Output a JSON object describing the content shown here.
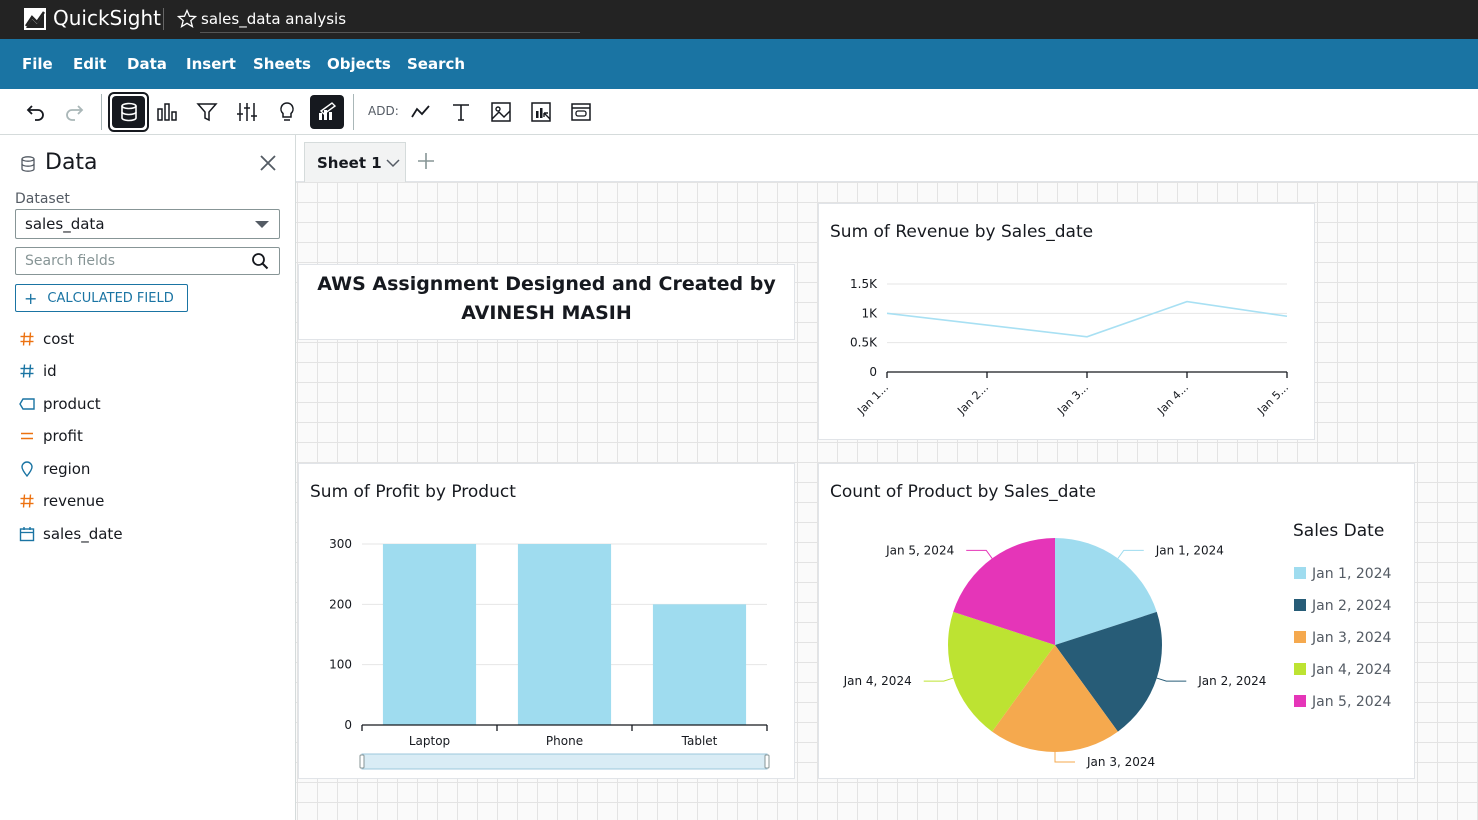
{
  "topbar": {
    "app_name": "QuickSight",
    "analysis_name": "sales_data analysis"
  },
  "menu": [
    "File",
    "Edit",
    "Data",
    "Insert",
    "Sheets",
    "Objects",
    "Search"
  ],
  "toolbar": {
    "add_label": "ADD:",
    "tools": [
      "undo-icon",
      "redo-icon",
      "dataset-icon",
      "visualize-icon",
      "filter-icon",
      "parameters-icon",
      "insights-icon",
      "format-icon"
    ],
    "add_tools": [
      "add-visual-icon",
      "add-text-icon",
      "add-image-icon",
      "add-insight-icon",
      "add-embed-icon"
    ]
  },
  "sidebar": {
    "title": "Data",
    "dataset_label": "Dataset",
    "dataset_value": "sales_data",
    "search_placeholder": "Search fields",
    "calc_field_label": "CALCULATED FIELD",
    "fields": [
      {
        "name": "cost",
        "type": "measure",
        "icon": "hash-icon",
        "color": "#ec7211"
      },
      {
        "name": "id",
        "type": "measure",
        "icon": "hash-icon",
        "color": "#1a74a3"
      },
      {
        "name": "product",
        "type": "dimension",
        "icon": "tag-icon",
        "color": "#1a74a3"
      },
      {
        "name": "profit",
        "type": "measure",
        "icon": "equals-icon",
        "color": "#ec7211"
      },
      {
        "name": "region",
        "type": "geo",
        "icon": "map-pin-icon",
        "color": "#1a74a3"
      },
      {
        "name": "revenue",
        "type": "measure",
        "icon": "hash-icon",
        "color": "#ec7211"
      },
      {
        "name": "sales_date",
        "type": "date",
        "icon": "calendar-icon",
        "color": "#1a74a3"
      }
    ]
  },
  "tabs": {
    "sheet_label": "Sheet 1"
  },
  "text_box": {
    "line1": "AWS Assignment Designed and Created by",
    "line2": "AVINESH MASIH"
  },
  "colors": {
    "accent": "#1a74a3",
    "series": [
      "#9fdcef",
      "#275c77",
      "#f5a94e",
      "#bde332",
      "#e535b8"
    ]
  },
  "chart_data": [
    {
      "type": "line",
      "title": "Sum of Revenue by Sales_date",
      "categories": [
        "Jan 1...",
        "Jan 2...",
        "Jan 3...",
        "Jan 4...",
        "Jan 5..."
      ],
      "values": [
        1000,
        800,
        600,
        1200,
        950
      ],
      "yticks": [
        "0",
        "0.5K",
        "1K",
        "1.5K"
      ],
      "ylim": [
        0,
        1500
      ],
      "color": "#a8e0f3"
    },
    {
      "type": "bar",
      "title": "Sum of Profit by Product",
      "categories": [
        "Laptop",
        "Phone",
        "Tablet"
      ],
      "values": [
        300,
        300,
        200
      ],
      "yticks": [
        "0",
        "100",
        "200",
        "300"
      ],
      "ylim": [
        0,
        300
      ],
      "color": "#9fdcef"
    },
    {
      "type": "pie",
      "title": "Count of Product by Sales_date",
      "legend_title": "Sales Date",
      "labels": [
        "Jan 1, 2024",
        "Jan 2, 2024",
        "Jan 3, 2024",
        "Jan 4, 2024",
        "Jan 5, 2024"
      ],
      "values": [
        1,
        1,
        1,
        1,
        1
      ],
      "colors": [
        "#9fdcef",
        "#275c77",
        "#f5a94e",
        "#bde332",
        "#e535b8"
      ]
    }
  ]
}
